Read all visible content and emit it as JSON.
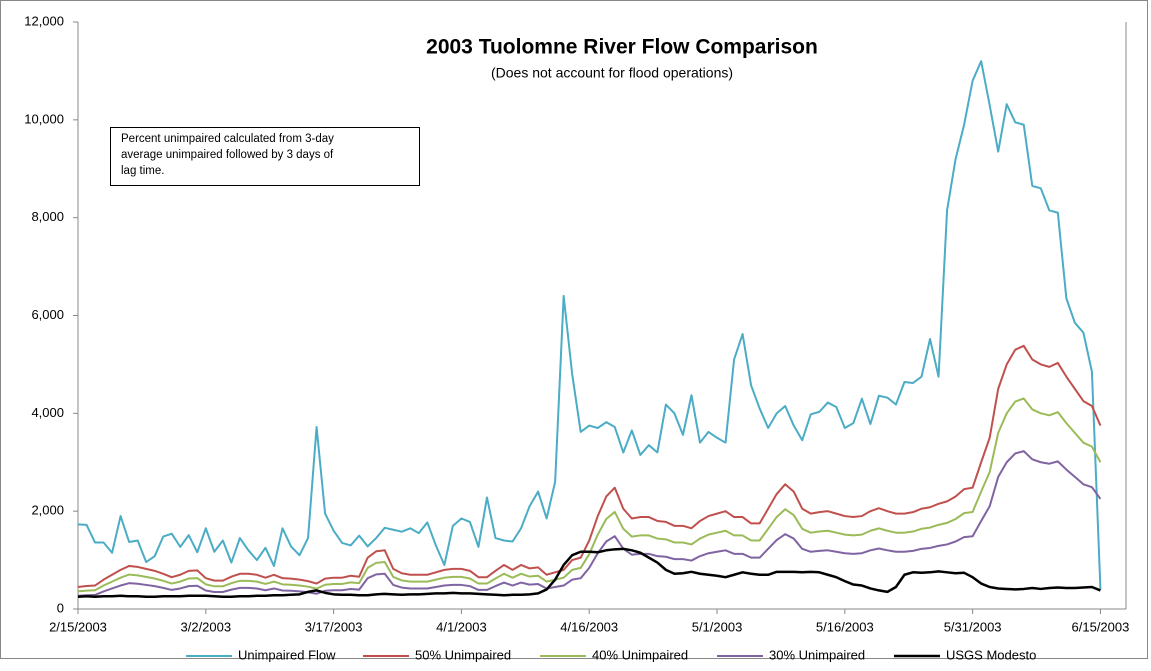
{
  "chart_data": {
    "type": "line",
    "title": "2003 Tuolomne River Flow Comparison",
    "subtitle": "(Does not account for flood operations)",
    "annotation": [
      "Percent unimpaired calculated from 3-day",
      "average unimpaired followed by 3 days of",
      "lag time."
    ],
    "x": [
      "2/15/2003",
      "2/16/2003",
      "2/17/2003",
      "2/18/2003",
      "2/19/2003",
      "2/20/2003",
      "2/21/2003",
      "2/22/2003",
      "2/23/2003",
      "2/24/2003",
      "2/25/2003",
      "2/26/2003",
      "2/27/2003",
      "2/28/2003",
      "3/1/2003",
      "3/2/2003",
      "3/3/2003",
      "3/4/2003",
      "3/5/2003",
      "3/6/2003",
      "3/7/2003",
      "3/8/2003",
      "3/9/2003",
      "3/10/2003",
      "3/11/2003",
      "3/12/2003",
      "3/13/2003",
      "3/14/2003",
      "3/15/2003",
      "3/16/2003",
      "3/17/2003",
      "3/18/2003",
      "3/19/2003",
      "3/20/2003",
      "3/21/2003",
      "3/22/2003",
      "3/23/2003",
      "3/24/2003",
      "3/25/2003",
      "3/26/2003",
      "3/27/2003",
      "3/28/2003",
      "3/29/2003",
      "3/30/2003",
      "3/31/2003",
      "4/1/2003",
      "4/2/2003",
      "4/3/2003",
      "4/4/2003",
      "4/5/2003",
      "4/6/2003",
      "4/7/2003",
      "4/8/2003",
      "4/9/2003",
      "4/10/2003",
      "4/11/2003",
      "4/12/2003",
      "4/13/2003",
      "4/14/2003",
      "4/15/2003",
      "4/16/2003",
      "4/17/2003",
      "4/18/2003",
      "4/19/2003",
      "4/20/2003",
      "4/21/2003",
      "4/22/2003",
      "4/23/2003",
      "4/24/2003",
      "4/25/2003",
      "4/26/2003",
      "4/27/2003",
      "4/28/2003",
      "4/29/2003",
      "4/30/2003",
      "5/1/2003",
      "5/2/2003",
      "5/3/2003",
      "5/4/2003",
      "5/5/2003",
      "5/6/2003",
      "5/7/2003",
      "5/8/2003",
      "5/9/2003",
      "5/10/2003",
      "5/11/2003",
      "5/12/2003",
      "5/13/2003",
      "5/14/2003",
      "5/15/2003",
      "5/16/2003",
      "5/17/2003",
      "5/18/2003",
      "5/19/2003",
      "5/20/2003",
      "5/21/2003",
      "5/22/2003",
      "5/23/2003",
      "5/24/2003",
      "5/25/2003",
      "5/26/2003",
      "5/27/2003",
      "5/28/2003",
      "5/29/2003",
      "5/30/2003",
      "5/31/2003",
      "6/1/2003",
      "6/2/2003",
      "6/3/2003",
      "6/4/2003",
      "6/5/2003",
      "6/6/2003",
      "6/7/2003",
      "6/8/2003",
      "6/9/2003",
      "6/10/2003",
      "6/11/2003",
      "6/12/2003",
      "6/13/2003",
      "6/14/2003",
      "6/15/2003"
    ],
    "series": [
      {
        "name": "Unimpaired Flow",
        "color": "#4bacc6",
        "values": [
          1730,
          1720,
          1360,
          1360,
          1150,
          1900,
          1370,
          1400,
          960,
          1080,
          1480,
          1540,
          1270,
          1510,
          1160,
          1650,
          1170,
          1400,
          950,
          1450,
          1200,
          1000,
          1250,
          880,
          1650,
          1280,
          1100,
          1450,
          3720,
          1950,
          1600,
          1350,
          1300,
          1500,
          1280,
          1450,
          1660,
          1620,
          1580,
          1650,
          1550,
          1770,
          1300,
          900,
          1700,
          1850,
          1780,
          1270,
          2280,
          1450,
          1400,
          1380,
          1650,
          2100,
          2400,
          1850,
          2600,
          6400,
          4800,
          3620,
          3750,
          3700,
          3820,
          3720,
          3200,
          3650,
          3150,
          3350,
          3200,
          4180,
          4000,
          3560,
          4370,
          3400,
          3620,
          3500,
          3400,
          5100,
          5620,
          4570,
          4100,
          3700,
          4000,
          4150,
          3750,
          3450,
          3980,
          4030,
          4220,
          4130,
          3700,
          3800,
          4300,
          3780,
          4360,
          4320,
          4180,
          4640,
          4620,
          4750,
          5520,
          4750,
          8150,
          9200,
          9900,
          10800,
          11200,
          10300,
          9350,
          10320,
          9950,
          9900,
          8650,
          8600,
          8150,
          8100,
          6350,
          5850,
          5650,
          4850,
          400
        ]
      },
      {
        "name": "50% Unimpaired",
        "color": "#c0504d",
        "values": [
          450,
          470,
          480,
          600,
          700,
          800,
          880,
          860,
          820,
          780,
          720,
          650,
          700,
          780,
          790,
          630,
          580,
          580,
          660,
          720,
          720,
          700,
          640,
          700,
          630,
          620,
          600,
          570,
          520,
          620,
          640,
          640,
          680,
          660,
          1050,
          1180,
          1200,
          820,
          730,
          700,
          700,
          700,
          750,
          800,
          820,
          820,
          780,
          650,
          650,
          780,
          900,
          800,
          900,
          830,
          850,
          700,
          750,
          800,
          1000,
          1050,
          1400,
          1900,
          2300,
          2480,
          2050,
          1850,
          1880,
          1880,
          1800,
          1780,
          1700,
          1700,
          1650,
          1800,
          1900,
          1950,
          2000,
          1880,
          1880,
          1750,
          1750,
          2050,
          2350,
          2550,
          2400,
          2050,
          1950,
          1980,
          2000,
          1950,
          1900,
          1880,
          1900,
          2000,
          2060,
          2000,
          1950,
          1950,
          1980,
          2050,
          2080,
          2150,
          2200,
          2300,
          2450,
          2480,
          3000,
          3500,
          4500,
          5000,
          5300,
          5380,
          5100,
          5000,
          4950,
          5030,
          4750,
          4500,
          4250,
          4150,
          3750
        ]
      },
      {
        "name": "40% Unimpaired",
        "color": "#9bbb59",
        "values": [
          360,
          376,
          384,
          480,
          560,
          640,
          704,
          688,
          656,
          624,
          576,
          520,
          560,
          624,
          632,
          504,
          464,
          464,
          528,
          576,
          576,
          560,
          512,
          560,
          504,
          496,
          480,
          456,
          416,
          496,
          512,
          512,
          544,
          528,
          840,
          944,
          960,
          656,
          584,
          560,
          560,
          560,
          600,
          640,
          656,
          656,
          624,
          520,
          520,
          624,
          720,
          640,
          720,
          664,
          680,
          560,
          600,
          640,
          800,
          840,
          1120,
          1520,
          1840,
          1984,
          1640,
          1480,
          1504,
          1504,
          1440,
          1424,
          1360,
          1360,
          1320,
          1440,
          1520,
          1560,
          1600,
          1504,
          1504,
          1400,
          1400,
          1640,
          1880,
          2040,
          1920,
          1640,
          1560,
          1584,
          1600,
          1560,
          1520,
          1504,
          1520,
          1600,
          1648,
          1600,
          1560,
          1560,
          1584,
          1640,
          1664,
          1720,
          1760,
          1840,
          1960,
          1984,
          2400,
          2800,
          3600,
          4000,
          4240,
          4304,
          4080,
          4000,
          3960,
          4024,
          3800,
          3600,
          3400,
          3320,
          3000
        ]
      },
      {
        "name": "30% Unimpaired",
        "color": "#8064a2",
        "values": [
          270,
          282,
          288,
          360,
          420,
          480,
          528,
          516,
          492,
          468,
          432,
          390,
          420,
          468,
          474,
          378,
          348,
          348,
          396,
          432,
          432,
          420,
          384,
          420,
          378,
          372,
          360,
          342,
          312,
          372,
          384,
          384,
          408,
          396,
          630,
          708,
          720,
          492,
          438,
          420,
          420,
          420,
          450,
          480,
          492,
          492,
          468,
          390,
          390,
          468,
          540,
          480,
          540,
          498,
          510,
          420,
          450,
          480,
          600,
          630,
          840,
          1140,
          1380,
          1488,
          1230,
          1110,
          1128,
          1128,
          1080,
          1068,
          1020,
          1020,
          990,
          1080,
          1140,
          1170,
          1200,
          1128,
          1128,
          1050,
          1050,
          1230,
          1410,
          1530,
          1440,
          1230,
          1170,
          1188,
          1200,
          1170,
          1140,
          1128,
          1140,
          1200,
          1236,
          1200,
          1170,
          1170,
          1188,
          1230,
          1248,
          1290,
          1320,
          1380,
          1470,
          1488,
          1800,
          2100,
          2700,
          3000,
          3180,
          3228,
          3060,
          3000,
          2970,
          3018,
          2850,
          2700,
          2550,
          2490,
          2250
        ]
      },
      {
        "name": "USGS Modesto",
        "color": "#000000",
        "values": [
          250,
          260,
          250,
          260,
          260,
          270,
          260,
          260,
          250,
          250,
          260,
          260,
          260,
          270,
          270,
          270,
          260,
          250,
          250,
          260,
          260,
          270,
          270,
          280,
          280,
          290,
          300,
          350,
          380,
          330,
          300,
          290,
          290,
          280,
          280,
          300,
          310,
          300,
          290,
          300,
          300,
          310,
          320,
          320,
          330,
          320,
          320,
          310,
          300,
          290,
          280,
          290,
          290,
          300,
          320,
          400,
          600,
          900,
          1100,
          1170,
          1170,
          1160,
          1200,
          1220,
          1230,
          1200,
          1150,
          1050,
          950,
          800,
          720,
          730,
          760,
          720,
          700,
          680,
          650,
          700,
          750,
          720,
          700,
          700,
          760,
          760,
          760,
          750,
          760,
          750,
          700,
          650,
          570,
          500,
          480,
          420,
          380,
          350,
          450,
          700,
          750,
          740,
          750,
          770,
          750,
          730,
          740,
          650,
          520,
          450,
          420,
          410,
          400,
          410,
          430,
          410,
          430,
          440,
          430,
          430,
          440,
          450,
          380
        ]
      }
    ],
    "xlim": [
      "2/15/2003",
      "6/18/2003"
    ],
    "xticks": [
      "2/15/2003",
      "3/2/2003",
      "3/17/2003",
      "4/1/2003",
      "4/16/2003",
      "5/1/2003",
      "5/16/2003",
      "5/31/2003",
      "6/15/2003"
    ],
    "ylim": [
      0,
      12000
    ],
    "yticks": [
      0,
      {
        "value": 2000,
        "label": "2,000"
      },
      {
        "value": 4000,
        "label": "4,000"
      },
      {
        "value": 6000,
        "label": "6,000"
      },
      {
        "value": 8000,
        "label": "8,000"
      },
      {
        "value": 10000,
        "label": "10,000"
      },
      {
        "value": 12000,
        "label": "12,000"
      }
    ],
    "grid": false,
    "legend": "bottom"
  }
}
